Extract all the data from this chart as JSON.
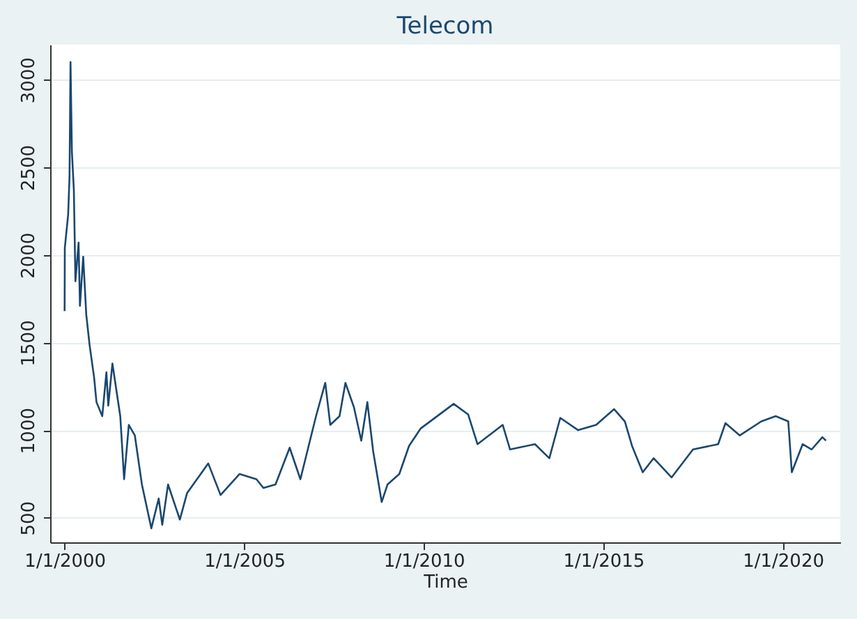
{
  "chart_data": {
    "type": "line",
    "title": "Telecom",
    "xlabel": "Time",
    "x": [
      "2000-01-01",
      "2000-01-03",
      "2000-02-06",
      "2000-02-20",
      "2000-03-01",
      "2000-03-15",
      "2000-04-04",
      "2000-04-20",
      "2000-05-22",
      "2000-06-05",
      "2000-07-08",
      "2000-08-08",
      "2000-09-10",
      "2000-10-27",
      "2000-11-20",
      "2001-01-18",
      "2001-03-01",
      "2001-03-20",
      "2001-05-01",
      "2001-07-20",
      "2001-08-28",
      "2001-10-15",
      "2001-12-15",
      "2002-02-25",
      "2002-06-01",
      "2002-08-15",
      "2002-09-20",
      "2002-11-18",
      "2003-03-18",
      "2003-05-30",
      "2004-01-01",
      "2004-05-05",
      "2004-11-15",
      "2005-05-05",
      "2005-07-15",
      "2005-11-15",
      "2006-04-08",
      "2006-07-26",
      "2007-01-01",
      "2007-04-05",
      "2007-05-26",
      "2007-08-28",
      "2007-10-27",
      "2008-01-22",
      "2008-04-05",
      "2008-06-06",
      "2008-08-04",
      "2008-10-30",
      "2008-12-28",
      "2009-04-27",
      "2009-08-04",
      "2009-12-01",
      "2010-11-01",
      "2011-03-28",
      "2011-07-01",
      "2012-03-14",
      "2012-05-27",
      "2013-02-05",
      "2013-07-01",
      "2013-10-20",
      "2014-04-20",
      "2014-10-20",
      "2015-04-20",
      "2015-08-08",
      "2015-10-20",
      "2016-02-06",
      "2016-05-27",
      "2016-11-25",
      "2017-07-01",
      "2018-03-14",
      "2018-05-27",
      "2018-10-20",
      "2019-05-27",
      "2019-10-20",
      "2020-02-25",
      "2020-04-01",
      "2020-07-20",
      "2020-10-20",
      "2021-02-06",
      "2021-03-14"
    ],
    "series": [
      {
        "color": "#1a476f",
        "values": [
          1680,
          2040,
          2230,
          2450,
          3100,
          2590,
          2370,
          1850,
          2070,
          1710,
          1990,
          1660,
          1490,
          1300,
          1160,
          1080,
          1330,
          1140,
          1380,
          1080,
          720,
          1030,
          970,
          690,
          440,
          610,
          460,
          690,
          490,
          640,
          810,
          630,
          750,
          720,
          670,
          690,
          900,
          720,
          1080,
          1270,
          1030,
          1080,
          1270,
          1130,
          940,
          1160,
          880,
          590,
          690,
          750,
          910,
          1010,
          1150,
          1090,
          920,
          1030,
          890,
          920,
          840,
          1070,
          1000,
          1030,
          1120,
          1050,
          910,
          760,
          840,
          730,
          890,
          920,
          1040,
          970,
          1050,
          1080,
          1050,
          760,
          920,
          890,
          960,
          940
        ]
      }
    ],
    "xlim": [
      "1999-08-07",
      "2021-08-07"
    ],
    "xticks": [
      {
        "value": "2000-01-01",
        "label": "1/1/2000"
      },
      {
        "value": "2005-01-01",
        "label": "1/1/2005"
      },
      {
        "value": "2010-01-01",
        "label": "1/1/2010"
      },
      {
        "value": "2015-01-01",
        "label": "1/1/2015"
      },
      {
        "value": "2020-01-01",
        "label": "1/1/2020"
      }
    ],
    "ylim": [
      360,
      3200
    ],
    "yticks": [
      500,
      1000,
      1500,
      2000,
      2500,
      3000
    ],
    "grid": "y",
    "marker": "none",
    "line_style": "solid"
  }
}
